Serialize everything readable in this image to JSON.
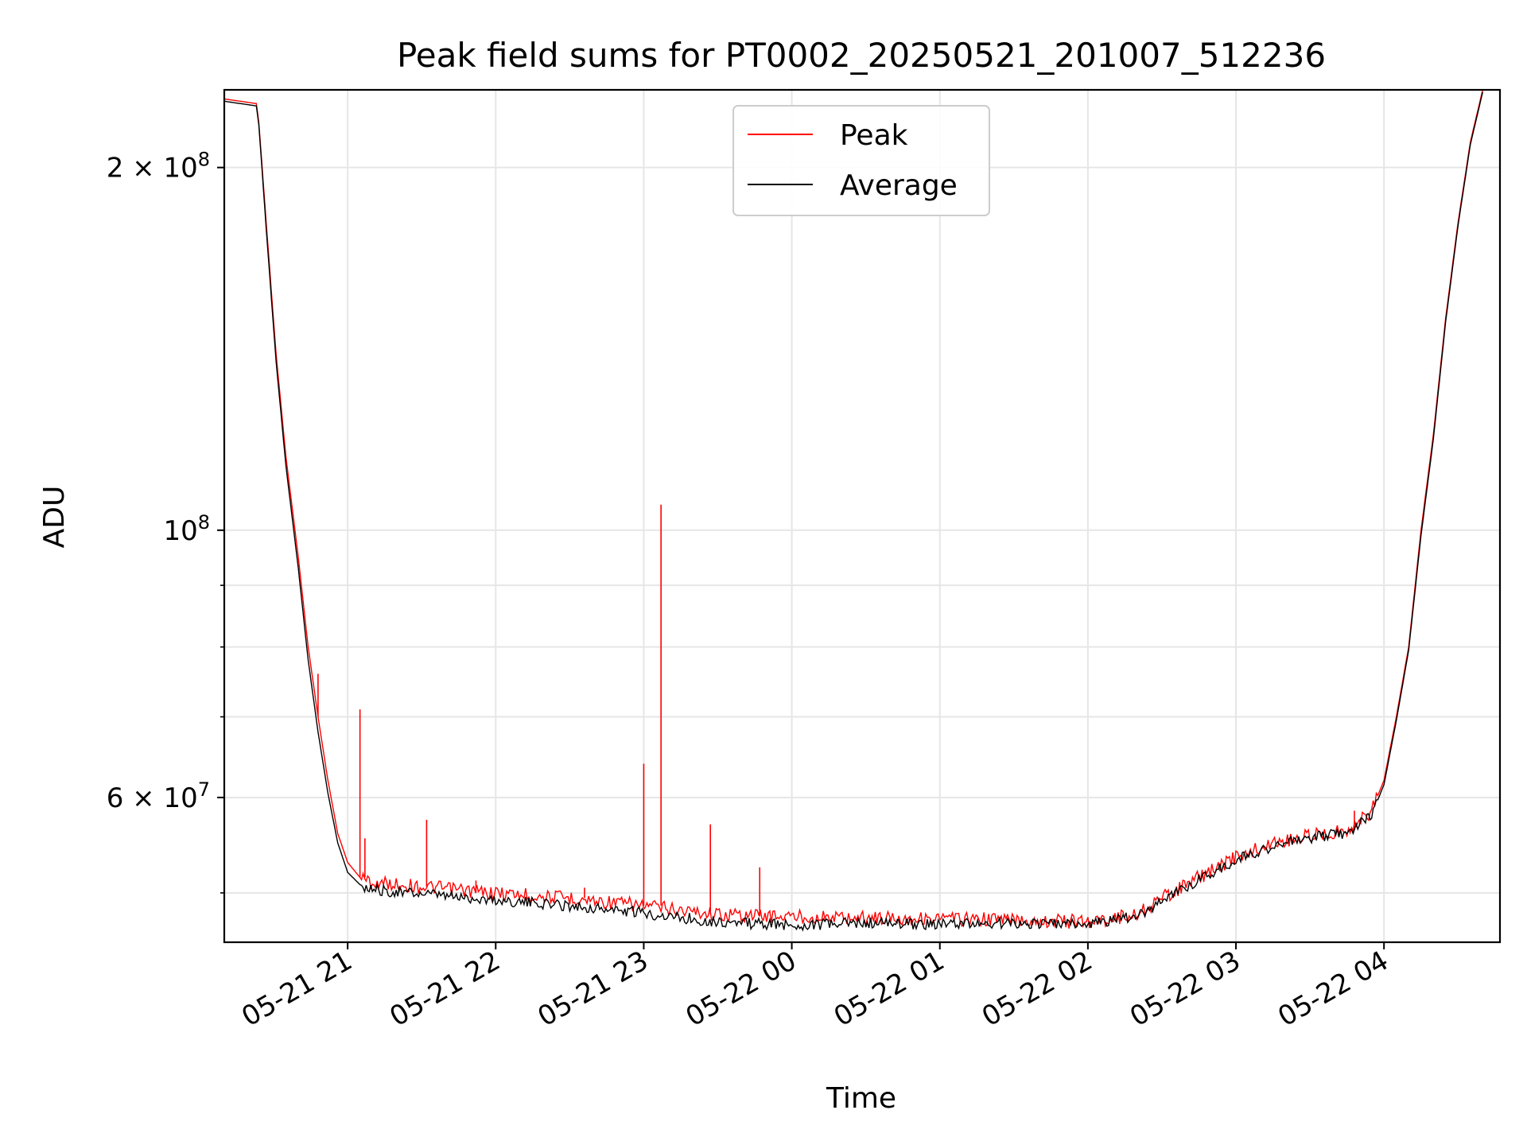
{
  "chart_data": {
    "type": "line",
    "title": "Peak field sums for PT0002_20250521_201007_512236",
    "xlabel": "Time",
    "ylabel": "ADU",
    "y_scale": "log",
    "ylim": [
      45500000,
      232000000
    ],
    "xlim": [
      "2025-05-21 20:10",
      "2025-05-22 04:47"
    ],
    "grid": true,
    "legend_position": "top-center",
    "x_ticks": [
      {
        "t": "2025-05-21 21:00",
        "label": "05-21 21"
      },
      {
        "t": "2025-05-21 22:00",
        "label": "05-21 22"
      },
      {
        "t": "2025-05-21 23:00",
        "label": "05-21 23"
      },
      {
        "t": "2025-05-22 00:00",
        "label": "05-22 00"
      },
      {
        "t": "2025-05-22 01:00",
        "label": "05-22 01"
      },
      {
        "t": "2025-05-22 02:00",
        "label": "05-22 02"
      },
      {
        "t": "2025-05-22 03:00",
        "label": "05-22 03"
      },
      {
        "t": "2025-05-22 04:00",
        "label": "05-22 04"
      }
    ],
    "y_major_ticks": [
      {
        "v": 200000000,
        "base": "2 × 10",
        "exp": "8"
      },
      {
        "v": 100000000,
        "base": "10",
        "exp": "8"
      },
      {
        "v": 60000000,
        "base": "6 × 10",
        "exp": "7"
      }
    ],
    "y_minor_grid": [
      50000000,
      70000000,
      80000000,
      90000000
    ],
    "colors": {
      "peak": "#ff0000",
      "average": "#000000",
      "grid": "#e6e6e6"
    },
    "series": [
      {
        "name": "Peak",
        "color": "#ff0000",
        "points": [
          [
            "2025-05-21 20:10",
            228000000
          ],
          [
            "2025-05-21 20:23",
            226000000
          ],
          [
            "2025-05-21 20:24",
            218000000
          ],
          [
            "2025-05-21 20:27",
            180000000
          ],
          [
            "2025-05-21 20:31",
            140000000
          ],
          [
            "2025-05-21 20:35",
            115000000
          ],
          [
            "2025-05-21 20:40",
            95000000
          ],
          [
            "2025-05-21 20:44",
            80000000
          ],
          [
            "2025-05-21 20:48",
            70000000
          ],
          [
            "2025-05-21 20:52",
            62000000
          ],
          [
            "2025-05-21 20:56",
            56000000
          ],
          [
            "2025-05-21 21:00",
            53000000
          ],
          [
            "2025-05-21 21:05",
            51500000
          ],
          [
            "2025-05-21 21:10",
            51000000
          ],
          [
            "2025-05-21 21:30",
            50600000
          ],
          [
            "2025-05-21 22:00",
            50000000
          ],
          [
            "2025-05-21 22:30",
            49500000
          ],
          [
            "2025-05-21 23:00",
            48800000
          ],
          [
            "2025-05-21 23:30",
            48000000
          ],
          [
            "2025-05-22 00:00",
            47800000
          ],
          [
            "2025-05-22 00:30",
            47700000
          ],
          [
            "2025-05-22 01:00",
            47600000
          ],
          [
            "2025-05-22 01:30",
            47500000
          ],
          [
            "2025-05-22 02:00",
            47300000
          ],
          [
            "2025-05-22 02:20",
            48000000
          ],
          [
            "2025-05-22 02:30",
            49500000
          ],
          [
            "2025-05-22 02:45",
            51500000
          ],
          [
            "2025-05-22 03:00",
            53500000
          ],
          [
            "2025-05-22 03:15",
            55000000
          ],
          [
            "2025-05-22 03:30",
            55800000
          ],
          [
            "2025-05-22 03:45",
            56400000
          ],
          [
            "2025-05-22 03:55",
            58500000
          ],
          [
            "2025-05-22 04:00",
            62000000
          ],
          [
            "2025-05-22 04:05",
            70000000
          ],
          [
            "2025-05-22 04:10",
            80000000
          ],
          [
            "2025-05-22 04:15",
            100000000
          ],
          [
            "2025-05-22 04:20",
            120000000
          ],
          [
            "2025-05-22 04:25",
            150000000
          ],
          [
            "2025-05-22 04:30",
            180000000
          ],
          [
            "2025-05-22 04:35",
            210000000
          ],
          [
            "2025-05-22 04:40",
            232000000
          ]
        ],
        "spikes": [
          [
            "2025-05-21 20:48",
            76000000
          ],
          [
            "2025-05-21 21:05",
            71000000
          ],
          [
            "2025-05-21 21:07",
            55500000
          ],
          [
            "2025-05-21 21:32",
            57500000
          ],
          [
            "2025-05-21 21:52",
            51200000
          ],
          [
            "2025-05-21 22:36",
            50500000
          ],
          [
            "2025-05-21 23:00",
            64000000
          ],
          [
            "2025-05-21 23:07",
            105000000
          ],
          [
            "2025-05-21 23:27",
            57000000
          ],
          [
            "2025-05-21 23:47",
            52500000
          ],
          [
            "2025-05-22 03:48",
            58500000
          ]
        ]
      },
      {
        "name": "Average",
        "color": "#000000",
        "points": [
          [
            "2025-05-21 20:10",
            227000000
          ],
          [
            "2025-05-21 20:23",
            225000000
          ],
          [
            "2025-05-21 20:24",
            217000000
          ],
          [
            "2025-05-21 20:27",
            178000000
          ],
          [
            "2025-05-21 20:31",
            138000000
          ],
          [
            "2025-05-21 20:35",
            113000000
          ],
          [
            "2025-05-21 20:40",
            93000000
          ],
          [
            "2025-05-21 20:44",
            78000000
          ],
          [
            "2025-05-21 20:48",
            68000000
          ],
          [
            "2025-05-21 20:52",
            60500000
          ],
          [
            "2025-05-21 20:56",
            55000000
          ],
          [
            "2025-05-21 21:00",
            52000000
          ],
          [
            "2025-05-21 21:05",
            50800000
          ],
          [
            "2025-05-21 21:10",
            50300000
          ],
          [
            "2025-05-21 21:30",
            49900000
          ],
          [
            "2025-05-21 22:00",
            49300000
          ],
          [
            "2025-05-21 22:30",
            48800000
          ],
          [
            "2025-05-21 23:00",
            48100000
          ],
          [
            "2025-05-21 23:30",
            47300000
          ],
          [
            "2025-05-22 00:00",
            47000000
          ],
          [
            "2025-05-22 00:30",
            47200000
          ],
          [
            "2025-05-22 01:00",
            47100000
          ],
          [
            "2025-05-22 01:30",
            47200000
          ],
          [
            "2025-05-22 02:00",
            47100000
          ],
          [
            "2025-05-22 02:20",
            47800000
          ],
          [
            "2025-05-22 02:30",
            49300000
          ],
          [
            "2025-05-22 02:45",
            51300000
          ],
          [
            "2025-05-22 03:00",
            53200000
          ],
          [
            "2025-05-22 03:15",
            54700000
          ],
          [
            "2025-05-22 03:30",
            55500000
          ],
          [
            "2025-05-22 03:45",
            56100000
          ],
          [
            "2025-05-22 03:55",
            58000000
          ],
          [
            "2025-05-22 04:00",
            61500000
          ],
          [
            "2025-05-22 04:05",
            69500000
          ],
          [
            "2025-05-22 04:10",
            79500000
          ],
          [
            "2025-05-22 04:15",
            99000000
          ],
          [
            "2025-05-22 04:20",
            119000000
          ],
          [
            "2025-05-22 04:25",
            149000000
          ],
          [
            "2025-05-22 04:30",
            179000000
          ],
          [
            "2025-05-22 04:35",
            209000000
          ],
          [
            "2025-05-22 04:40",
            231000000
          ]
        ]
      }
    ]
  }
}
